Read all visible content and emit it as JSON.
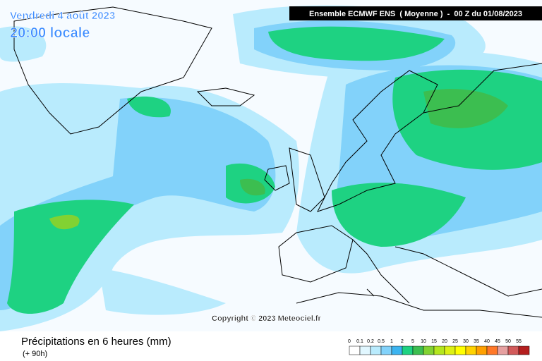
{
  "header": {
    "date": "Vendredi 4 août 2023",
    "time": "20:00 locale",
    "model": "Ensemble ECMWF ENS  ( Moyenne )  -  00 Z du 01/08/2023"
  },
  "copyright": "Copyright © 2023 Meteociel.fr",
  "footer": {
    "title": "Précipitations en 6 heures (mm)",
    "lead": "(+ 90h)"
  },
  "legend": {
    "levels": [
      {
        "label": "0",
        "color": "#ffffff"
      },
      {
        "label": "0.1",
        "color": "#e1f7ff"
      },
      {
        "label": "0.2",
        "color": "#b9ebfd"
      },
      {
        "label": "0.5",
        "color": "#82d2fa"
      },
      {
        "label": "1",
        "color": "#3cb4f0"
      },
      {
        "label": "2",
        "color": "#1ed282"
      },
      {
        "label": "5",
        "color": "#3cbe50"
      },
      {
        "label": "10",
        "color": "#82d232"
      },
      {
        "label": "15",
        "color": "#b4e61e"
      },
      {
        "label": "20",
        "color": "#dcf014"
      },
      {
        "label": "25",
        "color": "#ffff00"
      },
      {
        "label": "30",
        "color": "#ffd200"
      },
      {
        "label": "35",
        "color": "#ffa000"
      },
      {
        "label": "40",
        "color": "#ff7828"
      },
      {
        "label": "45",
        "color": "#e6a0a0"
      },
      {
        "label": "50",
        "color": "#d25a5a"
      },
      {
        "label": "55",
        "color": "#b41e1e"
      }
    ]
  }
}
